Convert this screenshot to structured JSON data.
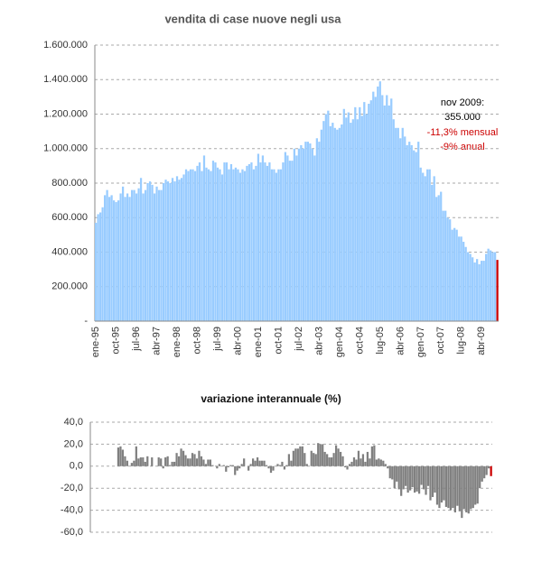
{
  "chart_data": [
    {
      "type": "bar",
      "title": "vendita di case nuove negli usa",
      "categories": [
        "ene-95",
        null,
        null,
        null,
        null,
        null,
        null,
        null,
        null,
        "oct-95",
        null,
        null,
        null,
        null,
        null,
        null,
        null,
        null,
        "jul-96",
        null,
        null,
        null,
        null,
        null,
        null,
        null,
        null,
        "abr-97",
        null,
        null,
        null,
        null,
        null,
        null,
        null,
        null,
        "ene-98",
        null,
        null,
        null,
        null,
        null,
        null,
        null,
        null,
        "oct-98",
        null,
        null,
        null,
        null,
        null,
        null,
        null,
        null,
        "jul-99",
        null,
        null,
        null,
        null,
        null,
        null,
        null,
        null,
        "abr-00",
        null,
        null,
        null,
        null,
        null,
        null,
        null,
        null,
        "ene-01",
        null,
        null,
        null,
        null,
        null,
        null,
        null,
        null,
        "oct-01",
        null,
        null,
        null,
        null,
        null,
        null,
        null,
        null,
        "jul-02",
        null,
        null,
        null,
        null,
        null,
        null,
        null,
        null,
        "abr-03",
        null,
        null,
        null,
        null,
        null,
        null,
        null,
        null,
        "gen-04",
        null,
        null,
        null,
        null,
        null,
        null,
        null,
        null,
        "oct-04",
        null,
        null,
        null,
        null,
        null,
        null,
        null,
        null,
        "lug-05",
        null,
        null,
        null,
        null,
        null,
        null,
        null,
        null,
        "abr-06",
        null,
        null,
        null,
        null,
        null,
        null,
        null,
        null,
        "gen-07",
        null,
        null,
        null,
        null,
        null,
        null,
        null,
        null,
        "oct-07",
        null,
        null,
        null,
        null,
        null,
        null,
        null,
        null,
        "lug-08",
        null,
        null,
        null,
        null,
        null,
        null,
        null,
        null,
        "abr-09",
        null,
        null,
        null,
        null,
        null,
        null,
        null
      ],
      "values": [
        570000,
        620000,
        630000,
        660000,
        730000,
        760000,
        720000,
        730000,
        700000,
        690000,
        700000,
        740000,
        780000,
        720000,
        740000,
        720000,
        760000,
        760000,
        740000,
        770000,
        830000,
        740000,
        760000,
        800000,
        810000,
        790000,
        740000,
        780000,
        760000,
        760000,
        800000,
        820000,
        810000,
        800000,
        830000,
        810000,
        840000,
        820000,
        830000,
        850000,
        880000,
        870000,
        880000,
        880000,
        870000,
        900000,
        920000,
        870000,
        960000,
        890000,
        880000,
        870000,
        930000,
        920000,
        890000,
        880000,
        850000,
        920000,
        920000,
        880000,
        910000,
        880000,
        890000,
        880000,
        860000,
        880000,
        870000,
        900000,
        910000,
        920000,
        880000,
        900000,
        970000,
        920000,
        960000,
        920000,
        900000,
        920000,
        880000,
        880000,
        860000,
        880000,
        880000,
        920000,
        980000,
        960000,
        930000,
        930000,
        1000000,
        960000,
        1000000,
        1020000,
        1000000,
        1040000,
        1040000,
        1030000,
        1000000,
        960000,
        1060000,
        1040000,
        1110000,
        1160000,
        1200000,
        1220000,
        1130000,
        1150000,
        1120000,
        1110000,
        1120000,
        1140000,
        1230000,
        1180000,
        1210000,
        1150000,
        1170000,
        1240000,
        1170000,
        1240000,
        1190000,
        1270000,
        1200000,
        1260000,
        1280000,
        1330000,
        1300000,
        1360000,
        1390000,
        1310000,
        1250000,
        1310000,
        1250000,
        1290000,
        1170000,
        1120000,
        1120000,
        1060000,
        1120000,
        1070000,
        1020000,
        1040000,
        1020000,
        990000,
        980000,
        1040000,
        890000,
        860000,
        840000,
        880000,
        880000,
        790000,
        840000,
        720000,
        730000,
        750000,
        640000,
        640000,
        600000,
        590000,
        530000,
        540000,
        530000,
        490000,
        490000,
        460000,
        430000,
        400000,
        390000,
        370000,
        340000,
        360000,
        330000,
        350000,
        350000,
        390000,
        420000,
        410000,
        400000,
        400000,
        355000
      ],
      "color": "#99ccff",
      "last_bar_color": "#cc0000",
      "ylim": [
        0,
        1600000
      ],
      "yticks": [
        {
          "value": 0,
          "label": "-"
        },
        {
          "value": 200000,
          "label": "200.000"
        },
        {
          "value": 400000,
          "label": "400.000"
        },
        {
          "value": 600000,
          "label": "600.000"
        },
        {
          "value": 800000,
          "label": "800.000"
        },
        {
          "value": 1000000,
          "label": "1.000.000"
        },
        {
          "value": 1200000,
          "label": "1.200.000"
        },
        {
          "value": 1400000,
          "label": "1.400.000"
        },
        {
          "value": 1600000,
          "label": "1.600.000"
        }
      ],
      "grid": true,
      "annotations": [
        "nov 2009:",
        "355.000",
        "-11,3% mensual",
        "-9% anual"
      ]
    },
    {
      "type": "bar",
      "title": "variazione interannuale (%)",
      "values": [
        null,
        null,
        null,
        null,
        null,
        null,
        null,
        null,
        null,
        null,
        null,
        null,
        17,
        18,
        15,
        9,
        5,
        0,
        3,
        5,
        18,
        7,
        8,
        8,
        4,
        9,
        0,
        8,
        0,
        0,
        8,
        7,
        -2,
        8,
        9,
        1,
        4,
        4,
        12,
        9,
        16,
        14,
        10,
        7,
        7,
        12,
        11,
        7,
        14,
        9,
        6,
        2,
        6,
        6,
        1,
        0,
        -2,
        2,
        0,
        1,
        -5,
        -1,
        1,
        1,
        -8,
        -4,
        -2,
        2,
        7,
        0,
        -4,
        2,
        7,
        5,
        8,
        5,
        5,
        5,
        1,
        -2,
        -6,
        -4,
        0,
        2,
        1,
        4,
        -3,
        1,
        11,
        5,
        14,
        16,
        16,
        18,
        18,
        12,
        2,
        0,
        14,
        12,
        11,
        21,
        20,
        20,
        13,
        11,
        8,
        8,
        12,
        19,
        16,
        13,
        9,
        -1,
        -3,
        2,
        4,
        8,
        6,
        14,
        7,
        11,
        4,
        13,
        7,
        18,
        19,
        6,
        7,
        6,
        5,
        2,
        -2,
        -11,
        -12,
        -20,
        -14,
        -21,
        -27,
        -21,
        -18,
        -24,
        -22,
        -19,
        -24,
        -23,
        -25,
        -17,
        -21,
        -26,
        -18,
        -31,
        -28,
        -24,
        -35,
        -38,
        -33,
        -31,
        -37,
        -38,
        -40,
        -38,
        -42,
        -36,
        -41,
        -47,
        -39,
        -42,
        -43,
        -39,
        -38,
        -35,
        -34,
        -20,
        -14,
        -11,
        -8,
        -2,
        -9
      ],
      "color": "#808080",
      "last_bar_color": "#cc0000",
      "ylim": [
        -60,
        40
      ],
      "yticks": [
        {
          "value": 40,
          "label": "40,0"
        },
        {
          "value": 20,
          "label": "20,0"
        },
        {
          "value": 0,
          "label": "0,0"
        },
        {
          "value": -20,
          "label": "-20,0"
        },
        {
          "value": -40,
          "label": "-40,0"
        },
        {
          "value": -60,
          "label": "-60,0"
        }
      ],
      "grid": true
    }
  ]
}
